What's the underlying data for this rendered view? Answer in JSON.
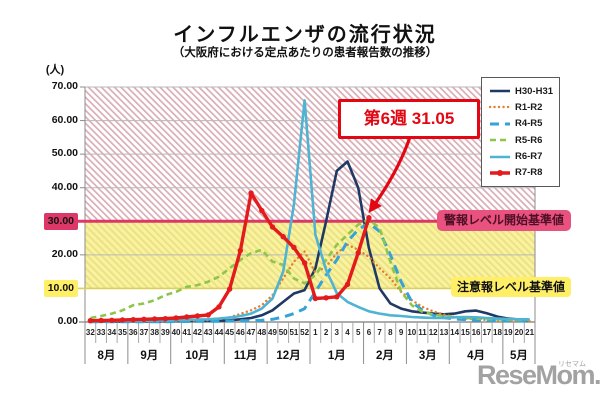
{
  "title": "インフルエンザの流行状況",
  "subtitle": "（大阪府における定点あたりの患者報告数の推移）",
  "y_axis": {
    "unit": "(人)",
    "ticks": [
      "70.00",
      "60.00",
      "50.00",
      "40.00",
      "30.00",
      "20.00",
      "10.00",
      "0.00"
    ]
  },
  "thresholds": {
    "alert": {
      "value": 30,
      "tick_label": "30.00",
      "label": "警報レベル開始基準値",
      "line_color": "#dd3768",
      "badge_bg": "#e9517e",
      "hatch_color": "#d9aeb6"
    },
    "caution": {
      "value": 10,
      "tick_label": "10.00",
      "label": "注意報レベル基準値",
      "badge_bg": "#ffef67",
      "band_color": "#f9f2a0",
      "hatch_color": "#ece284",
      "line_color": "#ddd05a"
    }
  },
  "annotation": {
    "text": "第6週 31.05",
    "week": "6",
    "value": 31.05,
    "color": "#e30613"
  },
  "logo": {
    "text": "ReseMom.",
    "kana": "リセマム"
  },
  "chart_data": {
    "type": "line",
    "x": [
      "32",
      "33",
      "34",
      "35",
      "36",
      "37",
      "38",
      "39",
      "40",
      "41",
      "42",
      "43",
      "44",
      "45",
      "46",
      "47",
      "48",
      "49",
      "50",
      "51",
      "52",
      "1",
      "2",
      "3",
      "4",
      "5",
      "6",
      "7",
      "8",
      "9",
      "10",
      "11",
      "12",
      "13",
      "14",
      "15",
      "16",
      "17",
      "18",
      "19",
      "20",
      "21"
    ],
    "x_months": [
      {
        "label": "8月",
        "weeks": 4
      },
      {
        "label": "9月",
        "weeks": 4
      },
      {
        "label": "10月",
        "weeks": 5
      },
      {
        "label": "11月",
        "weeks": 4
      },
      {
        "label": "12月",
        "weeks": 4
      },
      {
        "label": "1月",
        "weeks": 5
      },
      {
        "label": "2月",
        "weeks": 4
      },
      {
        "label": "3月",
        "weeks": 4
      },
      {
        "label": "4月",
        "weeks": 5
      },
      {
        "label": "5月",
        "weeks": 3
      }
    ],
    "ylim": [
      0,
      70
    ],
    "ytick_step": 10,
    "grid": true,
    "legend_position": "top-right",
    "series": [
      {
        "name": "H30-H31",
        "color": "#1f3864",
        "style": "solid",
        "values": [
          0.1,
          0.1,
          0.1,
          0.1,
          0.15,
          0.15,
          0.2,
          0.2,
          0.25,
          0.3,
          0.3,
          0.35,
          0.4,
          0.5,
          0.8,
          1.2,
          2.0,
          3.5,
          6.0,
          8.5,
          9.5,
          16,
          30,
          45,
          47.8,
          40,
          22,
          10,
          5.5,
          4.0,
          3.2,
          2.8,
          2.5,
          2.3,
          2.5,
          3.2,
          3.4,
          2.6,
          1.6,
          1.0,
          0.7,
          0.5
        ]
      },
      {
        "name": "R1-R2",
        "color": "#e1802f",
        "style": "dotted",
        "values": [
          0.1,
          0.1,
          0.1,
          0.15,
          0.15,
          0.2,
          0.2,
          0.25,
          0.3,
          0.35,
          0.4,
          0.5,
          0.8,
          1.4,
          2.4,
          3.5,
          5.0,
          8.0,
          13.0,
          18.0,
          21.0,
          14.6,
          16.5,
          20.5,
          23.0,
          21.5,
          19.4,
          16.0,
          13.0,
          9.0,
          6.5,
          4.5,
          3.2,
          2.2,
          1.5,
          1.0,
          0.8,
          0.6,
          0.5,
          0.4,
          0.3,
          0.3
        ]
      },
      {
        "name": "R4-R5",
        "color": "#35a3d5",
        "style": "dashed-long",
        "values": [
          0.05,
          0.05,
          0.05,
          0.05,
          0.1,
          0.1,
          0.1,
          0.1,
          0.15,
          0.15,
          0.2,
          0.2,
          0.25,
          0.3,
          0.35,
          0.4,
          0.5,
          0.8,
          1.5,
          2.5,
          4.0,
          9.0,
          14.0,
          18.5,
          24.0,
          27.5,
          29.5,
          27.0,
          20.0,
          12.0,
          6.0,
          3.5,
          2.0,
          1.3,
          0.9,
          0.7,
          0.6,
          0.5,
          0.4,
          0.4,
          0.3,
          0.3
        ]
      },
      {
        "name": "R5-R6",
        "color": "#8ec54b",
        "style": "dashed",
        "values": [
          1.2,
          1.8,
          2.5,
          3.5,
          5.0,
          5.5,
          6.5,
          8.0,
          9.0,
          10.5,
          11.0,
          12.0,
          13.5,
          16.0,
          18.5,
          20.5,
          21.5,
          18.0,
          17.0,
          13.0,
          11.5,
          14.0,
          18.5,
          23.0,
          26.0,
          29.0,
          30.5,
          28.0,
          18.0,
          9.0,
          5.0,
          3.0,
          2.2,
          1.8,
          1.5,
          1.2,
          1.0,
          0.9,
          0.8,
          0.7,
          0.6,
          0.6
        ]
      },
      {
        "name": "R6-R7",
        "color": "#4fb3d2",
        "style": "solid",
        "values": [
          0.2,
          0.2,
          0.25,
          0.3,
          0.3,
          0.35,
          0.4,
          0.45,
          0.5,
          0.6,
          0.7,
          0.8,
          1.0,
          1.3,
          1.8,
          2.5,
          4.0,
          7.0,
          15.0,
          35.0,
          66.0,
          26.0,
          15.5,
          8.6,
          6.0,
          4.5,
          3.2,
          2.5,
          2.0,
          1.8,
          1.5,
          1.3,
          1.2,
          1.2,
          1.4,
          1.5,
          1.4,
          1.2,
          1.0,
          0.9,
          0.8,
          0.8
        ]
      },
      {
        "name": "R7-R8",
        "color": "#e31b1c",
        "style": "solid-marker",
        "values": [
          0.4,
          0.45,
          0.5,
          0.6,
          0.7,
          0.8,
          0.9,
          1.0,
          1.2,
          1.5,
          1.8,
          2.1,
          4.5,
          9.8,
          21.3,
          38.4,
          33.2,
          28.3,
          25.4,
          22.2,
          17.6,
          7.0,
          7.2,
          7.5,
          11.2,
          20.6,
          31.05,
          null,
          null,
          null,
          null,
          null,
          null,
          null,
          null,
          null,
          null,
          null,
          null,
          null,
          null,
          null
        ]
      }
    ]
  }
}
